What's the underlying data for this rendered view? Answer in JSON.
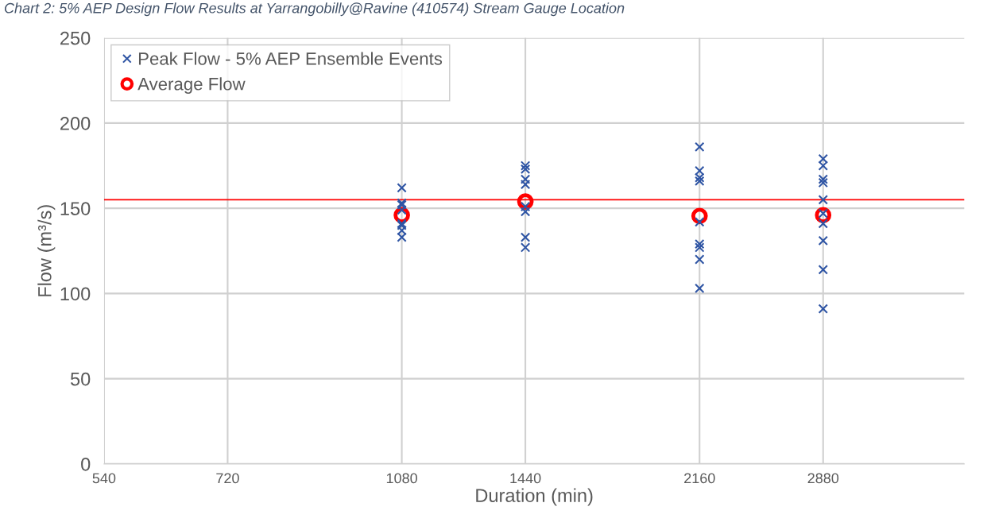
{
  "chart_data": {
    "type": "scatter",
    "title": "Chart 2: 5% AEP Design Flow Results at Yarrangobilly@Ravine (410574) Stream Gauge Location",
    "xlabel": "Duration (min)",
    "ylabel": "Flow (m³/s)",
    "log": "x",
    "xlim": [
      540,
      4000
    ],
    "xticks": [
      540,
      720,
      1080,
      1440,
      2160,
      2880
    ],
    "ylim": [
      0,
      250
    ],
    "yticks": [
      0,
      50,
      100,
      150,
      200,
      250
    ],
    "grid": true,
    "legend": "top left",
    "series": [
      {
        "name": "Peak Flow - 5% AEP Ensemble Events",
        "color": "#2f55a4",
        "marker": "cross",
        "x": [
          1080,
          1080,
          1080,
          1080,
          1080,
          1080,
          1080,
          1080,
          1440,
          1440,
          1440,
          1440,
          1440,
          1440,
          1440,
          1440,
          2160,
          2160,
          2160,
          2160,
          2160,
          2160,
          2160,
          2160,
          2160,
          2880,
          2880,
          2880,
          2880,
          2880,
          2880,
          2880,
          2880,
          2880,
          2880
        ],
        "values": [
          162,
          153,
          152,
          149,
          141,
          140,
          137,
          133,
          175,
          173,
          167,
          164,
          151,
          148,
          133,
          127,
          186,
          172,
          168,
          166,
          142,
          129,
          127,
          120,
          103,
          179,
          175,
          167,
          165,
          155,
          147,
          141,
          131,
          114,
          91
        ]
      },
      {
        "name": "Average Flow",
        "color": "#ff0000",
        "marker": "circle",
        "x": [
          1080,
          1440,
          2160,
          2880
        ],
        "values": [
          146,
          154,
          145.5,
          146
        ]
      }
    ],
    "ref_lines": [
      {
        "axis": "y",
        "value": 155,
        "color": "#ff0000"
      }
    ]
  }
}
